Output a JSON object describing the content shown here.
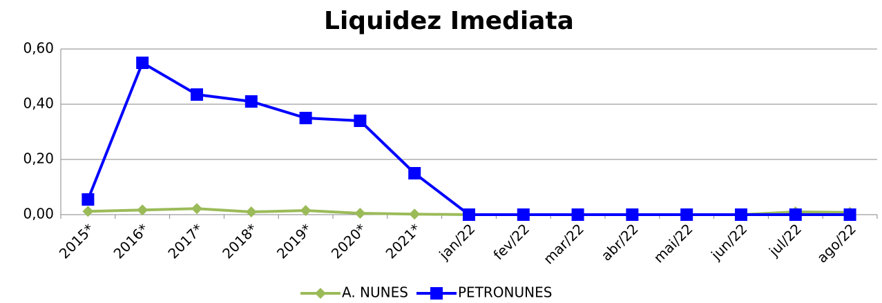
{
  "chart_data": {
    "type": "line",
    "title": "Liquidez Imediata",
    "categories": [
      "2015*",
      "2016*",
      "2017*",
      "2018*",
      "2019*",
      "2020*",
      "2021*",
      "jan/22",
      "fev/22",
      "mar/22",
      "abr/22",
      "mai/22",
      "jun/22",
      "jul/22",
      "ago/22"
    ],
    "series": [
      {
        "name": "A. NUNES",
        "color": "#9bbb59",
        "marker": "diamond",
        "values": [
          0.012,
          0.017,
          0.022,
          0.01,
          0.015,
          0.005,
          0.002,
          0,
          0,
          0,
          0,
          0,
          0,
          0.01,
          0.008
        ]
      },
      {
        "name": "PETRONUNES",
        "color": "#0000ff",
        "marker": "square",
        "values": [
          0.055,
          0.55,
          0.435,
          0.41,
          0.35,
          0.34,
          0.15,
          0,
          0,
          0,
          0,
          0,
          0,
          0,
          0
        ]
      }
    ],
    "ylim": [
      0,
      0.6
    ],
    "yticks": [
      {
        "value": 0,
        "label": "0,00"
      },
      {
        "value": 0.2,
        "label": "0,20"
      },
      {
        "value": 0.4,
        "label": "0,40"
      },
      {
        "value": 0.6,
        "label": "0,60"
      }
    ],
    "grid": true,
    "legend": "bottom"
  }
}
